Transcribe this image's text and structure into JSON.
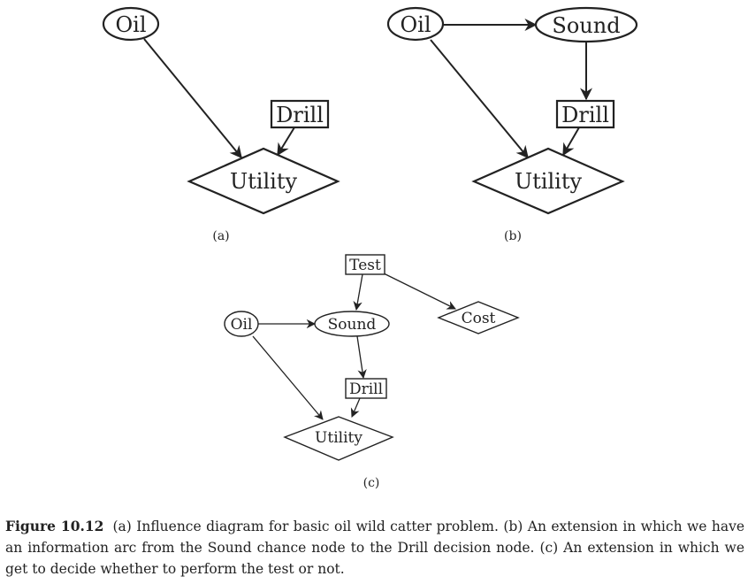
{
  "figure": {
    "panel_a": {
      "label": "(a)",
      "nodes": {
        "oil": "Oil",
        "drill": "Drill",
        "utility": "Utility"
      }
    },
    "panel_b": {
      "label": "(b)",
      "nodes": {
        "oil": "Oil",
        "sound": "Sound",
        "drill": "Drill",
        "utility": "Utility"
      }
    },
    "panel_c": {
      "label": "(c)",
      "nodes": {
        "test": "Test",
        "oil": "Oil",
        "sound": "Sound",
        "cost": "Cost",
        "drill": "Drill",
        "utility": "Utility"
      }
    }
  },
  "caption": {
    "label": "Figure 10.12",
    "text": "(a) Influence diagram for basic oil wild catter problem. (b) An extension in which we have an information arc from the Sound chance node to the Drill decision node. (c) An extension in which we get to decide whether to perform the test or not."
  }
}
